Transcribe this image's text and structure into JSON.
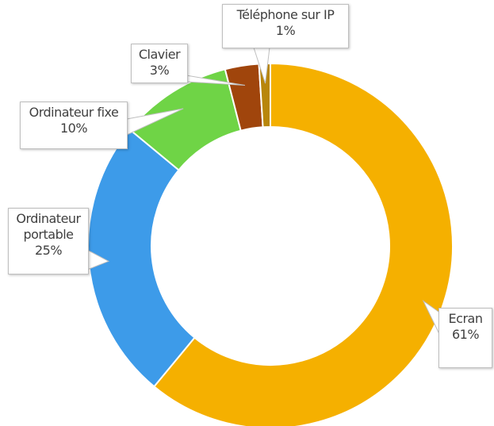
{
  "chart_data": {
    "type": "donut",
    "categories": [
      "Ecran",
      "Ordinateur portable",
      "Ordinateur fixe",
      "Clavier",
      "Téléphone sur IP"
    ],
    "values": [
      61,
      25,
      10,
      3,
      1
    ],
    "value_labels": [
      "61%",
      "25%",
      "10%",
      "3%",
      "1%"
    ],
    "colors": [
      "#f5b000",
      "#3d9be9",
      "#6fd446",
      "#a0450c",
      "#b8860b"
    ]
  }
}
